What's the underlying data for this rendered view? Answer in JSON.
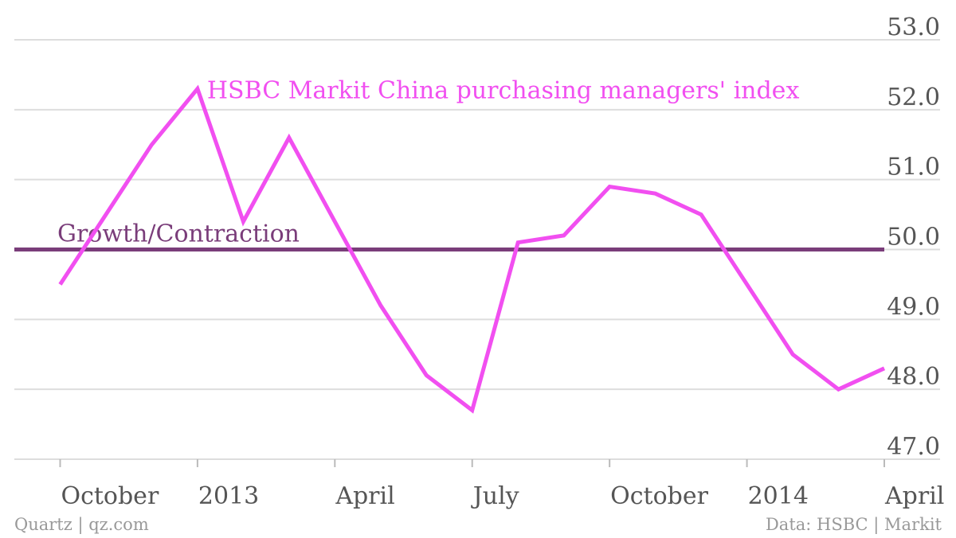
{
  "chart_data": {
    "type": "line",
    "x": [
      "2012-09",
      "2012-10",
      "2012-11",
      "2012-12",
      "2013-01",
      "2013-02",
      "2013-03",
      "2013-04",
      "2013-05",
      "2013-06",
      "2013-07",
      "2013-08",
      "2013-09",
      "2013-10",
      "2013-11",
      "2013-12",
      "2014-01",
      "2014-02",
      "2014-03",
      "2014-04"
    ],
    "series": [
      {
        "name": "HSBC Markit China purchasing managers' index",
        "color": "#f14ff0",
        "values": [
          null,
          49.5,
          50.5,
          51.5,
          52.3,
          50.4,
          51.6,
          50.4,
          49.2,
          48.2,
          47.7,
          50.1,
          50.2,
          50.9,
          50.8,
          50.5,
          49.5,
          48.5,
          48.0,
          48.3
        ]
      }
    ],
    "reference_line": {
      "label": "Growth/Contraction",
      "value": 50.0,
      "color": "#7a3d7a"
    },
    "y_ticks": [
      "53.0",
      "52.0",
      "51.0",
      "50.0",
      "49.0",
      "48.0",
      "47.0"
    ],
    "x_ticks": [
      {
        "label": "October",
        "x": "2012-10"
      },
      {
        "label": "2013",
        "x": "2013-01"
      },
      {
        "label": "April",
        "x": "2013-04"
      },
      {
        "label": "July",
        "x": "2013-07"
      },
      {
        "label": "October",
        "x": "2013-10"
      },
      {
        "label": "2014",
        "x": "2014-01"
      },
      {
        "label": "April",
        "x": "2014-04"
      }
    ],
    "ylim": [
      47.0,
      53.0
    ],
    "grid": true,
    "title": "",
    "xlabel": "",
    "ylabel": ""
  },
  "footer": {
    "left": "Quartz | qz.com",
    "right": "Data: HSBC | Markit"
  }
}
